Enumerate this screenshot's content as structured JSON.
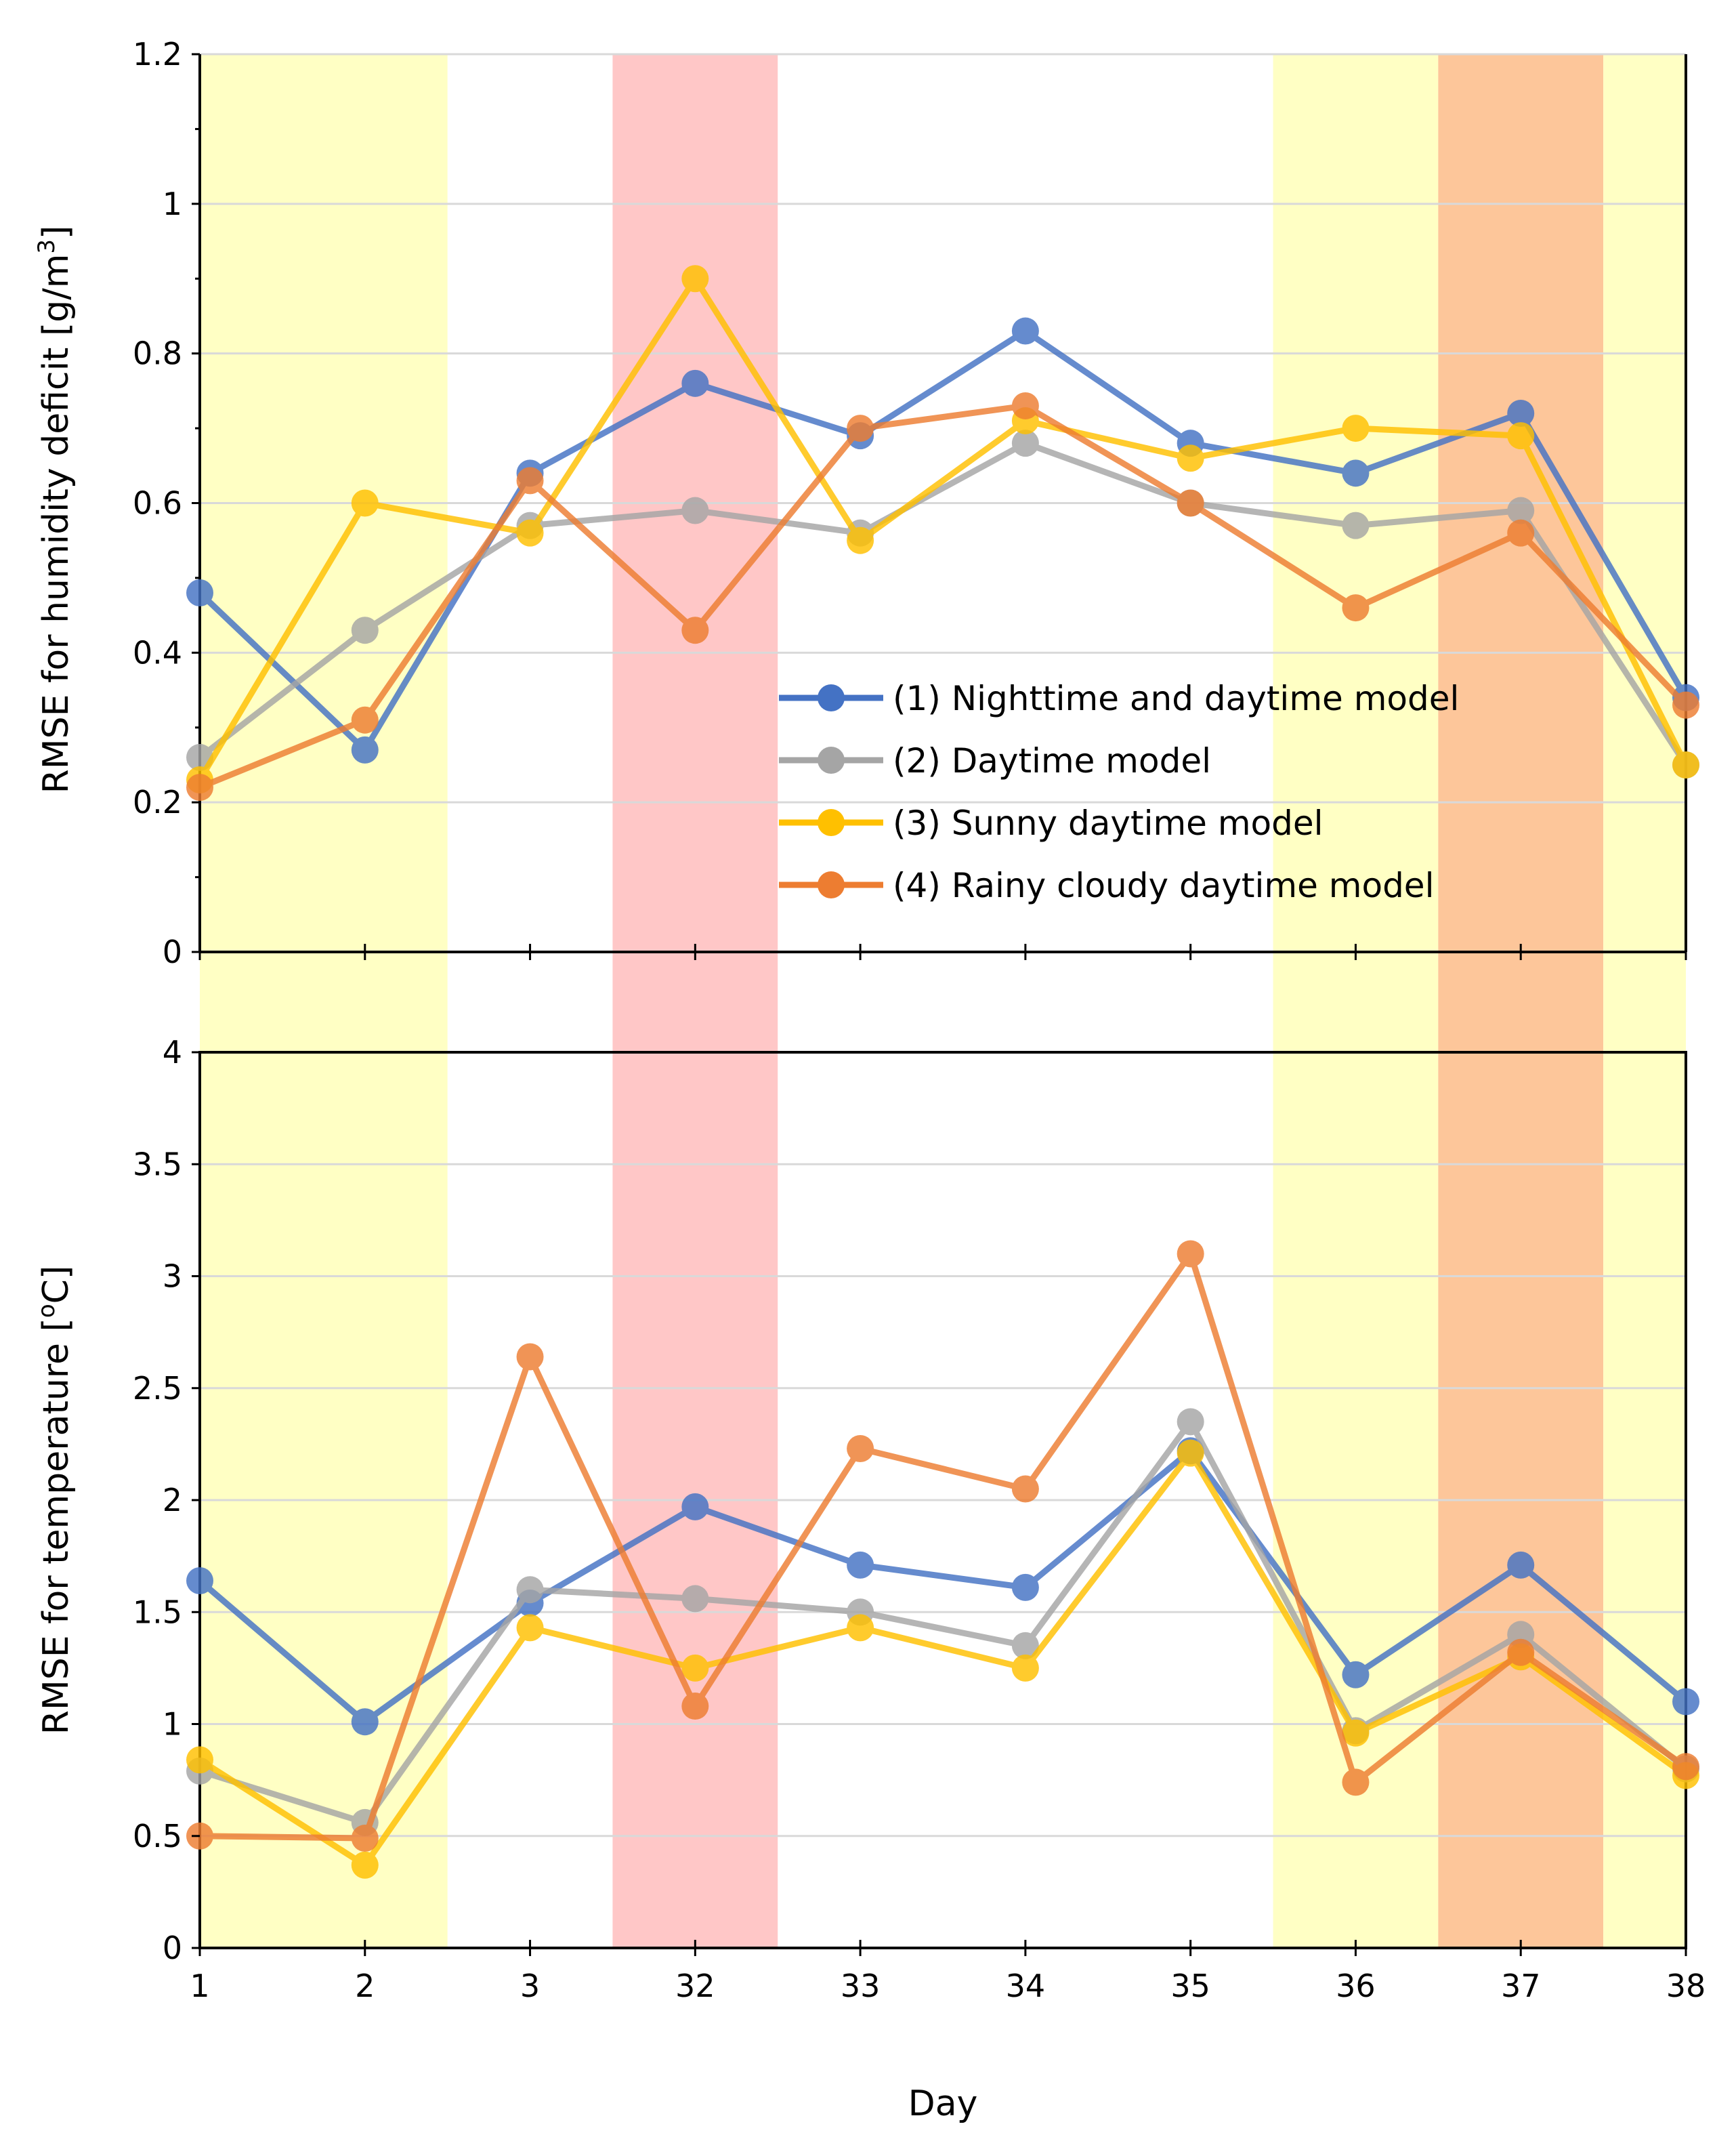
{
  "chart_data": [
    {
      "type": "line",
      "title": "",
      "xlabel": "",
      "ylabel": "RMSE for humidity deficit [g/m",
      "ylabel_sup": "3",
      "ylabel_end": "]",
      "categories": [
        "1",
        "2",
        "3",
        "32",
        "33",
        "34",
        "35",
        "36",
        "37",
        "38"
      ],
      "ylim": [
        0,
        1.2
      ],
      "yticks": [
        0,
        0.2,
        0.4,
        0.6,
        0.8,
        1.0,
        1.2
      ],
      "ytick_labels": [
        "0",
        "0.2",
        "0.4",
        "0.6",
        "0.8",
        "1",
        "1.2"
      ],
      "grid": true,
      "legend_position": "center-right",
      "series": [
        {
          "name": "(1) Nighttime and daytime model",
          "color": "#4472C4",
          "values": [
            0.48,
            0.27,
            0.64,
            0.76,
            0.69,
            0.83,
            0.68,
            0.64,
            0.72,
            0.34
          ]
        },
        {
          "name": "(2) Daytime model",
          "color": "#A5A5A5",
          "values": [
            0.26,
            0.43,
            0.57,
            0.59,
            0.56,
            0.68,
            0.6,
            0.57,
            0.59,
            0.25
          ]
        },
        {
          "name": "(3) Sunny daytime model",
          "color": "#FFC000",
          "values": [
            0.23,
            0.6,
            0.56,
            0.9,
            0.55,
            0.71,
            0.66,
            0.7,
            0.69,
            0.25
          ]
        },
        {
          "name": "(4) Rainy cloudy daytime model",
          "color": "#ED7D31",
          "values": [
            0.22,
            0.31,
            0.63,
            0.43,
            0.7,
            0.73,
            0.6,
            0.46,
            0.56,
            0.33
          ]
        }
      ]
    },
    {
      "type": "line",
      "title": "",
      "xlabel": "Day",
      "ylabel": "RMSE for temperature [",
      "ylabel_sup": "o",
      "ylabel_end": "C]",
      "categories": [
        "1",
        "2",
        "3",
        "32",
        "33",
        "34",
        "35",
        "36",
        "37",
        "38"
      ],
      "ylim": [
        0,
        4
      ],
      "yticks": [
        0,
        0.5,
        1.0,
        1.5,
        2.0,
        2.5,
        3.0,
        3.5,
        4.0
      ],
      "ytick_labels": [
        "0",
        "0.5",
        "1",
        "1.5",
        "2",
        "2.5",
        "3",
        "3.5",
        "4"
      ],
      "grid": true,
      "series": [
        {
          "name": "(1) Nighttime and daytime model",
          "color": "#4472C4",
          "values": [
            1.64,
            1.01,
            1.54,
            1.97,
            1.71,
            1.61,
            2.22,
            1.22,
            1.71,
            1.1
          ]
        },
        {
          "name": "(2) Daytime model",
          "color": "#A5A5A5",
          "values": [
            0.79,
            0.56,
            1.6,
            1.56,
            1.5,
            1.35,
            2.35,
            0.97,
            1.4,
            0.8
          ]
        },
        {
          "name": "(3) Sunny daytime model",
          "color": "#FFC000",
          "values": [
            0.84,
            0.37,
            1.43,
            1.25,
            1.43,
            1.25,
            2.21,
            0.96,
            1.3,
            0.77
          ]
        },
        {
          "name": "(4) Rainy cloudy daytime model",
          "color": "#ED7D31",
          "values": [
            0.5,
            0.49,
            2.64,
            1.08,
            2.23,
            2.05,
            3.1,
            0.74,
            1.32,
            0.81
          ]
        }
      ]
    }
  ],
  "shading": {
    "bands": [
      {
        "from": 0,
        "to": 1.5,
        "color": "#FFFFC4"
      },
      {
        "from": 2.5,
        "to": 3.5,
        "color": "#FFC7C7"
      },
      {
        "from": 6.5,
        "to": 7.5,
        "color": "#FFFFC4"
      },
      {
        "from": 7.5,
        "to": 8.5,
        "color": "#FDC69A"
      },
      {
        "from": 8.5,
        "to": 9,
        "color": "#FFFFC4"
      }
    ]
  },
  "style": {
    "grid_color": "#D9D9D9",
    "axis_color": "#000000",
    "legend_marker_color": "#4472C4"
  }
}
